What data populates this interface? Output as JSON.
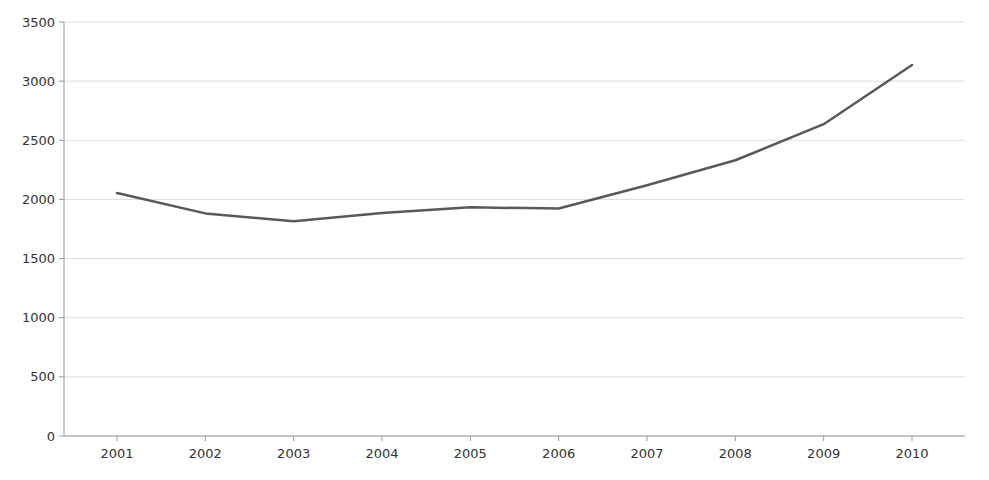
{
  "chart_data": {
    "type": "line",
    "x": [
      2001,
      2002,
      2003,
      2004,
      2005,
      2006,
      2007,
      2008,
      2009,
      2010
    ],
    "values": [
      2054,
      1882,
      1815,
      1886,
      1933,
      1923,
      2120,
      2331,
      2636,
      3136
    ],
    "color": "#595959",
    "xlim": [
      2000.4,
      2010.6
    ],
    "xticks": [
      2001,
      2002,
      2003,
      2004,
      2005,
      2006,
      2007,
      2008,
      2009,
      2010
    ],
    "ylim": [
      0,
      3500
    ],
    "yticks": [
      0,
      500,
      1000,
      1500,
      2000,
      2500,
      3000,
      3500
    ],
    "grid": true
  }
}
